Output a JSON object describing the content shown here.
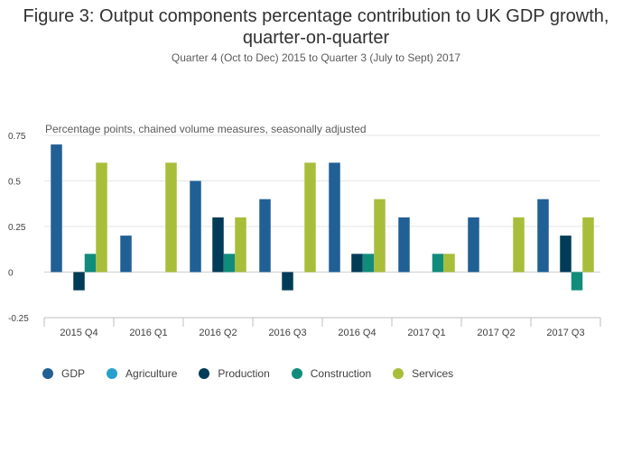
{
  "header": {
    "title": "Figure 3: Output components percentage contribution to UK GDP growth, quarter-on-quarter",
    "subtitle": "Quarter 4 (Oct to Dec) 2015 to Quarter 3 (July to Sept) 2017"
  },
  "chart_data": {
    "type": "bar",
    "title": "Figure 3: Output components percentage contribution to UK GDP growth, quarter-on-quarter",
    "subtitle": "Quarter 4 (Oct to Dec) 2015 to Quarter 3 (July to Sept) 2017",
    "ylabel": "Percentage points, chained volume measures, seasonally adjusted",
    "xlabel": "",
    "categories": [
      "2015 Q4",
      "2016 Q1",
      "2016 Q2",
      "2016 Q3",
      "2016 Q4",
      "2017 Q1",
      "2017 Q2",
      "2017 Q3"
    ],
    "ylim": [
      -0.25,
      0.75
    ],
    "yticks": [
      -0.25,
      0,
      0.25,
      0.5,
      0.75
    ],
    "ytick_labels": [
      "-0.25",
      "0",
      "0.25",
      "0.5",
      "0.75"
    ],
    "grid": true,
    "legend_position": "bottom-left",
    "series": [
      {
        "name": "GDP",
        "color": "#206095",
        "values": [
          0.7,
          0.2,
          0.5,
          0.4,
          0.6,
          0.3,
          0.3,
          0.4
        ]
      },
      {
        "name": "Agriculture",
        "color": "#27a0cc",
        "values": [
          0,
          0,
          0,
          0,
          0,
          0,
          0,
          0
        ]
      },
      {
        "name": "Production",
        "color": "#003c57",
        "values": [
          -0.1,
          0,
          0.3,
          -0.1,
          0.1,
          0,
          0,
          0.2
        ]
      },
      {
        "name": "Construction",
        "color": "#118c7b",
        "values": [
          0.1,
          0,
          0.1,
          0,
          0.1,
          0.1,
          0,
          -0.1
        ]
      },
      {
        "name": "Services",
        "color": "#a8bd3a",
        "values": [
          0.6,
          0.6,
          0.3,
          0.6,
          0.4,
          0.1,
          0.3,
          0.3
        ]
      }
    ]
  }
}
